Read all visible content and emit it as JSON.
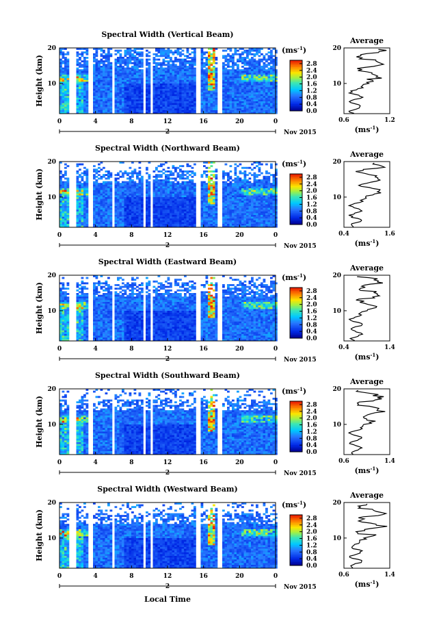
{
  "colorbar": {
    "unit": "(ms",
    "unit_exp": "-1",
    "unit_close": ")",
    "ticks": [
      "2.8",
      "2.4",
      "2.0",
      "1.6",
      "1.2",
      "0.8",
      "0.4",
      "0.0"
    ]
  },
  "xaxis": {
    "ticks": [
      "0",
      "4",
      "8",
      "12",
      "16",
      "20",
      "0"
    ],
    "day_marker": "2",
    "date_label": "Nov 2015",
    "xlabel": "Local Time"
  },
  "ylabel": "Height (km)",
  "yticks": [
    "20",
    "10"
  ],
  "avg_title": "Average",
  "avg_xlabel": "(ms",
  "avg_xlabel_exp": "-1",
  "avg_xlabel_close": ")",
  "chart_data": [
    {
      "type": "heatmap",
      "title": "Spectral Width (Vertical Beam)",
      "xlabel": "Local Time",
      "ylabel": "Height (km)",
      "xlim": [
        0,
        24
      ],
      "ylim": [
        1.5,
        20
      ],
      "colorbar_range": [
        0.0,
        3.0
      ],
      "average_profile": {
        "title": "Average",
        "xlim": [
          0.6,
          1.2
        ],
        "xticks": [
          "0.6",
          "1.2"
        ]
      }
    },
    {
      "type": "heatmap",
      "title": "Spectral Width (Northward Beam)",
      "xlabel": "Local Time",
      "ylabel": "Height (km)",
      "xlim": [
        0,
        24
      ],
      "ylim": [
        1.5,
        20
      ],
      "colorbar_range": [
        0.0,
        3.0
      ],
      "average_profile": {
        "title": "Average",
        "xlim": [
          0.4,
          1.6
        ],
        "xticks": [
          "0.4",
          "1.6"
        ]
      }
    },
    {
      "type": "heatmap",
      "title": "Spectral Width (Eastward Beam)",
      "xlabel": "Local Time",
      "ylabel": "Height (km)",
      "xlim": [
        0,
        24
      ],
      "ylim": [
        1.5,
        20
      ],
      "colorbar_range": [
        0.0,
        3.0
      ],
      "average_profile": {
        "title": "Average",
        "xlim": [
          0.4,
          1.4
        ],
        "xticks": [
          "0.4",
          "1.4"
        ]
      }
    },
    {
      "type": "heatmap",
      "title": "Spectral Width (Southward Beam)",
      "xlabel": "Local Time",
      "ylabel": "Height (km)",
      "xlim": [
        0,
        24
      ],
      "ylim": [
        1.5,
        20
      ],
      "colorbar_range": [
        0.0,
        3.0
      ],
      "average_profile": {
        "title": "Average",
        "xlim": [
          0.6,
          1.4
        ],
        "xticks": [
          "0.6",
          "1.4"
        ]
      }
    },
    {
      "type": "heatmap",
      "title": "Spectral Width (Westward Beam)",
      "xlabel": "Local Time",
      "ylabel": "Height (km)",
      "xlim": [
        0,
        24
      ],
      "ylim": [
        1.5,
        20
      ],
      "colorbar_range": [
        0.0,
        3.0
      ],
      "average_profile": {
        "title": "Average",
        "xlim": [
          0.6,
          1.4
        ],
        "xticks": [
          "0.6",
          "1.4"
        ]
      }
    }
  ]
}
